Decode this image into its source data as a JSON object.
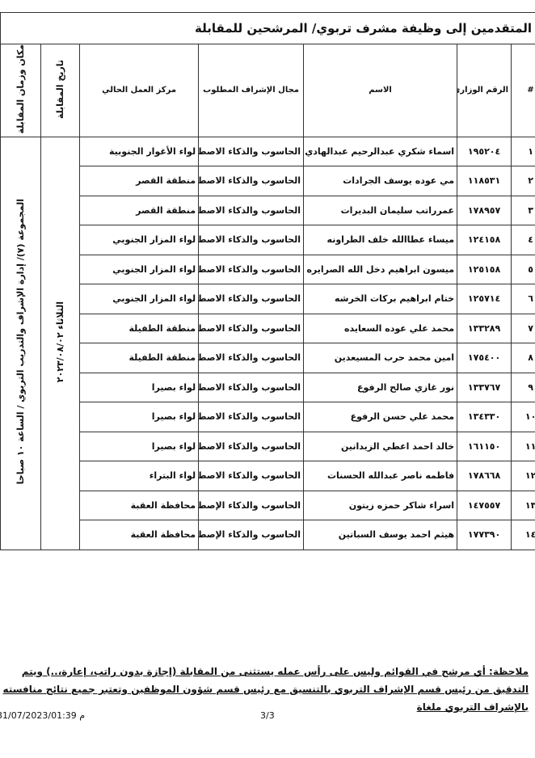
{
  "title": "المتقدمين إلى وظيفة مشرف تربوي/ المرشحين للمقابلة",
  "headers": {
    "index": "#",
    "national_no": "الرقم الوزاري",
    "name": "الاسم",
    "field": "مجال الإشراف المطلوب",
    "workplace": "مركز العمل الحالي",
    "date": "تاريخ المقابلة",
    "place_time": "مكان وزمان المقابلة"
  },
  "interview_date": "الثلاثاء ٢٠٢٣/٠٨/٠٢",
  "interview_place_time": "المجموعة (٧)/ إدارة الإشراف والتدريب التربوي / الساعة ١٠ صباحا",
  "rows": [
    {
      "idx": "١",
      "num": "١٩٥٢٠٤",
      "name": "اسماء شكري عبدالرحيم عبدالهادي",
      "field": "الحاسوب والذكاء الاصطناعي",
      "work": "لواء الأغوار الجنوبية"
    },
    {
      "idx": "٢",
      "num": "١١٨٥٣١",
      "name": "مي عوده يوسف الجرادات",
      "field": "الحاسوب والذكاء الاصطناعي",
      "work": "منطقة القصر"
    },
    {
      "idx": "٣",
      "num": "١٧٨٩٥٧",
      "name": "عمرراتب سليمان البديرات",
      "field": "الحاسوب والذكاء الاصطناعي",
      "work": "منطقة القصر"
    },
    {
      "idx": "٤",
      "num": "١٢٤١٥٨",
      "name": "ميساء عطاالله خلف الطراونه",
      "field": "الحاسوب والذكاء الاصطناعي",
      "work": "لواء المزار الجنوبي"
    },
    {
      "idx": "٥",
      "num": "١٢٥١٥٨",
      "name": "ميسون ابراهيم دخل الله الصرايره",
      "field": "الحاسوب والذكاء الاصطناعي",
      "work": "لواء المزار الجنوبي"
    },
    {
      "idx": "٦",
      "num": "١٢٥٧١٤",
      "name": "ختام ابراهيم بركات الخرشه",
      "field": "الحاسوب والذكاء الاصطناعي",
      "work": "لواء المزار الجنوبي"
    },
    {
      "idx": "٧",
      "num": "١٣٣٢٨٩",
      "name": "محمد علي عوده السعايده",
      "field": "الحاسوب والذكاء الاصطناعي",
      "work": "منطقة الطفيلة"
    },
    {
      "idx": "٨",
      "num": "١٧٥٤٠٠",
      "name": "امين محمد حرب المسيعدين",
      "field": "الحاسوب والذكاء الاصطناعي",
      "work": "منطقة الطفيلة"
    },
    {
      "idx": "٩",
      "num": "١٣٣٧٦٧",
      "name": "نور غازي صالح الرفوع",
      "field": "الحاسوب والذكاء الاصطناعي",
      "work": "لواء بصيرا"
    },
    {
      "idx": "١٠",
      "num": "١٣٤٣٣٠",
      "name": "محمد علي حسن الرفوع",
      "field": "الحاسوب والذكاء الاصطناعي",
      "work": "لواء بصيرا"
    },
    {
      "idx": "١١",
      "num": "١٦١١٥٠",
      "name": "خالد احمد اعطي الزيدانين",
      "field": "الحاسوب والذكاء الاصطناعي",
      "work": "لواء بصيرا"
    },
    {
      "idx": "١٢",
      "num": "١٧٨٦٦٨",
      "name": "فاطمه ناصر عبدالله الحسنات",
      "field": "الحاسوب والذكاء الاصطناعي",
      "work": "لواء البتراء"
    },
    {
      "idx": "١٣",
      "num": "١٤٧٥٥٧",
      "name": "اسراء شاكر حمزه زيتون",
      "field": "الحاسوب والذكاء الإصطناعي",
      "work": "محافظة العقبة"
    },
    {
      "idx": "١٤",
      "num": "١٧٧٣٩٠",
      "name": "هيثم احمد يوسف السباتين",
      "field": "الحاسوب والذكاء الإصطناعي",
      "work": "محافظة العقبة"
    }
  ],
  "note": [
    "ملاحظة: أي مرشح في القوائم وليس على رأس عمله يستثنى من المقابلة (إجازة بدون راتب، إعارة،..) ويتم",
    "التدقيق من رئيس قسم الإشراف التربوي بالتنسيق مع رئيس قسم شؤون الموظفين وتعتبر جميع نتائج منافسته",
    "بالإشراف التربوي ملغاة"
  ],
  "footer": {
    "timestamp": "م 31/07/2023/01:39",
    "page": "3/3"
  }
}
